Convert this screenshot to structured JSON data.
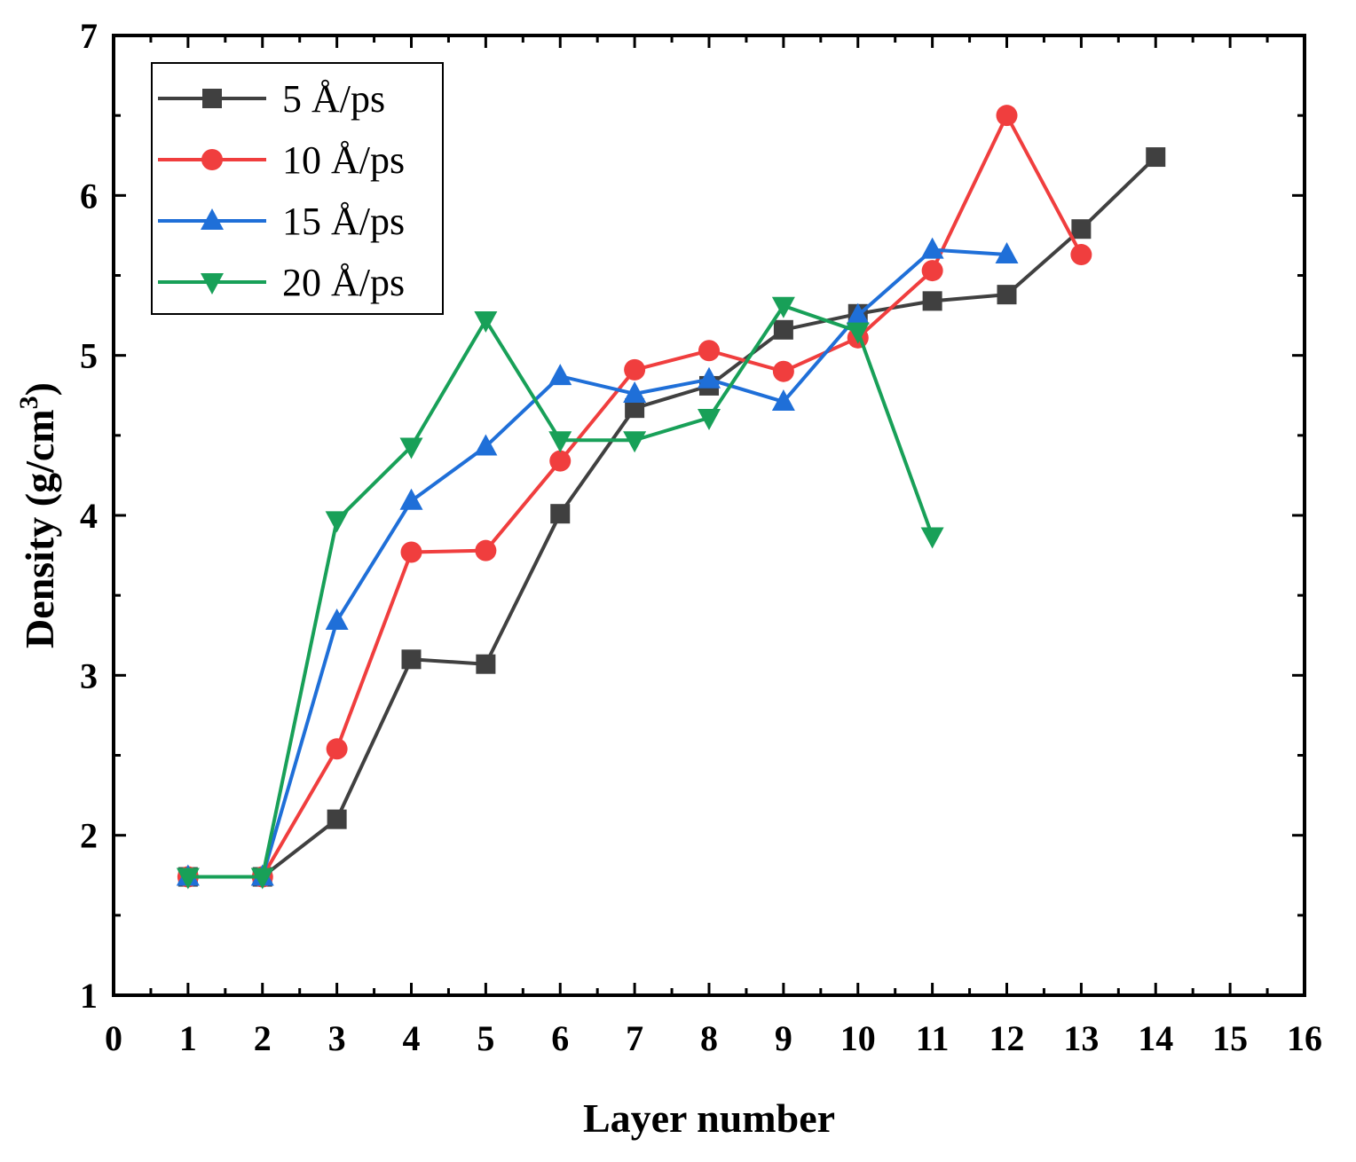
{
  "chart_data": {
    "type": "line",
    "title": "",
    "xlabel": "Layer number",
    "ylabel": "Density (g/cm",
    "ylabel_superscript": "3",
    "ylabel_close": ")",
    "xlim": [
      0,
      16
    ],
    "ylim": [
      1,
      7
    ],
    "xticks": [
      0,
      1,
      2,
      3,
      4,
      5,
      6,
      7,
      8,
      9,
      10,
      11,
      12,
      13,
      14,
      15,
      16
    ],
    "yticks": [
      1,
      2,
      3,
      4,
      5,
      6,
      7
    ],
    "legend_position": "top-left",
    "grid": false,
    "series": [
      {
        "name": "5 Å/ps",
        "color": "#404040",
        "marker": "square",
        "x": [
          1,
          2,
          3,
          4,
          5,
          6,
          7,
          8,
          9,
          10,
          11,
          12,
          13,
          14
        ],
        "values": [
          1.74,
          1.74,
          2.1,
          3.1,
          3.07,
          4.01,
          4.67,
          4.81,
          5.16,
          5.26,
          5.34,
          5.38,
          5.79,
          6.24
        ]
      },
      {
        "name": "10 Å/ps",
        "color": "#f03e3e",
        "marker": "circle",
        "x": [
          1,
          2,
          3,
          4,
          5,
          6,
          7,
          8,
          9,
          10,
          11,
          12,
          13
        ],
        "values": [
          1.74,
          1.74,
          2.54,
          3.77,
          3.78,
          4.34,
          4.91,
          5.03,
          4.9,
          5.11,
          5.53,
          6.5,
          5.63
        ]
      },
      {
        "name": "15 Å/ps",
        "color": "#1f6fd8",
        "marker": "triangle-up",
        "x": [
          1,
          2,
          3,
          4,
          5,
          6,
          7,
          8,
          9,
          10,
          11,
          12
        ],
        "values": [
          1.74,
          1.74,
          3.34,
          4.09,
          4.43,
          4.87,
          4.76,
          4.85,
          4.71,
          5.25,
          5.66,
          5.63
        ]
      },
      {
        "name": "20 Å/ps",
        "color": "#18a058",
        "marker": "triangle-down",
        "x": [
          1,
          2,
          3,
          4,
          5,
          6,
          7,
          8,
          9,
          10,
          11
        ],
        "values": [
          1.74,
          1.74,
          3.97,
          4.43,
          5.22,
          4.47,
          4.47,
          4.61,
          5.31,
          5.15,
          3.87
        ]
      }
    ]
  }
}
